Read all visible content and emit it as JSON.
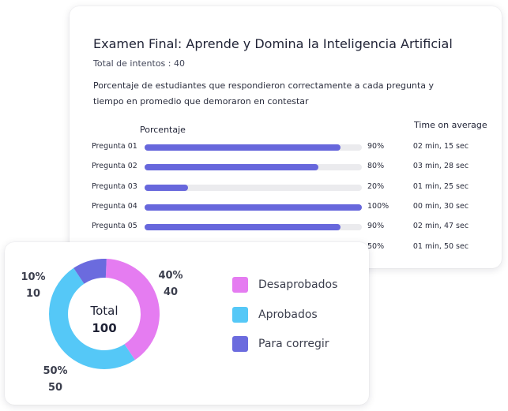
{
  "exam": {
    "title": "Examen Final: Aprende y Domina la Inteligencia Artificial",
    "attempts": "Total de intentos : 40",
    "description": "Porcentaje de estudiantes que respondieron correctamente a cada pregunta y tiempo en promedio que demoraron en contestar",
    "pct_header": "Porcentaje",
    "time_header": "Time on average",
    "questions": [
      {
        "label": "Pregunta 01",
        "percent": 90,
        "percent_text": "90%",
        "time": "02 min, 15 sec"
      },
      {
        "label": "Pregunta 02",
        "percent": 80,
        "percent_text": "80%",
        "time": "03 min, 28 sec"
      },
      {
        "label": "Pregunta 03",
        "percent": 20,
        "percent_text": "20%",
        "time": "01 min, 25 sec"
      },
      {
        "label": "Pregunta 04",
        "percent": 100,
        "percent_text": "100%",
        "time": "00 min, 30 sec"
      },
      {
        "label": "Pregunta 05",
        "percent": 90,
        "percent_text": "90%",
        "time": "02 min, 47 sec"
      },
      {
        "label": "",
        "percent": 50,
        "percent_text": "50%",
        "time": "01 min, 50 sec"
      }
    ],
    "bar_color": "#6767dc",
    "track_color": "#ebebee"
  },
  "summary": {
    "center_label": "Total",
    "center_value": "100",
    "segments": [
      {
        "name": "Desaprobados",
        "percent_text": "40%",
        "value": "40",
        "value_num": 40,
        "color": "#e57cf1"
      },
      {
        "name": "Aprobados",
        "percent_text": "50%",
        "value": "50",
        "value_num": 50,
        "color": "#55c8f7"
      },
      {
        "name": "Para corregir",
        "percent_text": "10%",
        "value": "10",
        "value_num": 10,
        "color": "#6b6bde"
      }
    ]
  }
}
